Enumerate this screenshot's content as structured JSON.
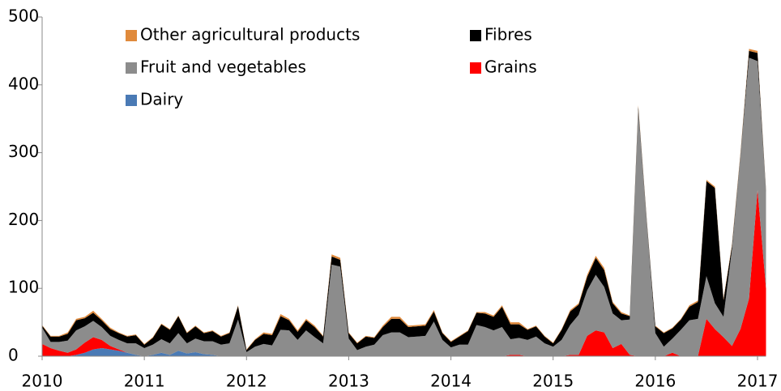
{
  "chart_data": {
    "type": "stacked_area",
    "x": [
      2010,
      2010.083,
      2010.167,
      2010.25,
      2010.333,
      2010.417,
      2010.5,
      2010.583,
      2010.667,
      2010.75,
      2010.833,
      2010.917,
      2011,
      2011.083,
      2011.167,
      2011.25,
      2011.333,
      2011.417,
      2011.5,
      2011.583,
      2011.667,
      2011.75,
      2011.833,
      2011.917,
      2012,
      2012.083,
      2012.167,
      2012.25,
      2012.333,
      2012.417,
      2012.5,
      2012.583,
      2012.667,
      2012.75,
      2012.833,
      2012.917,
      2013,
      2013.083,
      2013.167,
      2013.25,
      2013.333,
      2013.417,
      2013.5,
      2013.583,
      2013.667,
      2013.75,
      2013.833,
      2013.917,
      2014,
      2014.083,
      2014.167,
      2014.25,
      2014.333,
      2014.417,
      2014.5,
      2014.583,
      2014.667,
      2014.75,
      2014.833,
      2014.917,
      2015,
      2015.083,
      2015.167,
      2015.25,
      2015.333,
      2015.417,
      2015.5,
      2015.583,
      2015.667,
      2015.75,
      2015.833,
      2015.917,
      2016,
      2016.083,
      2016.167,
      2016.25,
      2016.333,
      2016.417,
      2016.5,
      2016.583,
      2016.667,
      2016.75,
      2016.833,
      2016.917,
      2017,
      2017.083
    ],
    "series": [
      {
        "name": "Dairy",
        "color": "#4a7ab5",
        "values": [
          0,
          0,
          0,
          0,
          2,
          5,
          10,
          12,
          10,
          8,
          5,
          2,
          0,
          2,
          5,
          2,
          8,
          4,
          6,
          3,
          2,
          0,
          0,
          0,
          0,
          0,
          0,
          0,
          0,
          0,
          0,
          0,
          0,
          0,
          0,
          0,
          0,
          0,
          0,
          0,
          0,
          0,
          0,
          0,
          0,
          0,
          0,
          0,
          0,
          0,
          0,
          0,
          0,
          0,
          0,
          0,
          0,
          0,
          0,
          0,
          0,
          0,
          0,
          0,
          0,
          0,
          0,
          0,
          0,
          0,
          0,
          0,
          0,
          0,
          0,
          0,
          0,
          0,
          0,
          0,
          0,
          0,
          0,
          0,
          0,
          0
        ]
      },
      {
        "name": "Grains",
        "color": "#ff0000",
        "values": [
          18,
          12,
          8,
          5,
          8,
          15,
          18,
          12,
          5,
          2,
          0,
          0,
          0,
          0,
          0,
          0,
          0,
          0,
          0,
          0,
          0,
          0,
          0,
          0,
          0,
          0,
          0,
          0,
          0,
          0,
          0,
          0,
          0,
          0,
          0,
          0,
          0,
          0,
          0,
          0,
          0,
          0,
          0,
          0,
          0,
          0,
          0,
          0,
          0,
          0,
          0,
          0,
          0,
          0,
          0,
          2,
          2,
          0,
          0,
          0,
          0,
          0,
          2,
          2,
          30,
          38,
          35,
          12,
          18,
          2,
          0,
          0,
          0,
          0,
          5,
          0,
          0,
          0,
          55,
          40,
          28,
          15,
          40,
          85,
          245,
          100
        ]
      },
      {
        "name": "Fruit and vegetables",
        "color": "#8c8c8c",
        "values": [
          24,
          9,
          13,
          18,
          28,
          24,
          24,
          19,
          15,
          14,
          14,
          17,
          12,
          15,
          20,
          17,
          26,
          15,
          20,
          19,
          20,
          17,
          19,
          54,
          6,
          14,
          18,
          16,
          39,
          38,
          24,
          38,
          28,
          19,
          135,
          132,
          26,
          9,
          14,
          17,
          31,
          35,
          35,
          28,
          29,
          30,
          51,
          24,
          13,
          17,
          17,
          46,
          43,
          38,
          43,
          23,
          25,
          24,
          29,
          19,
          14,
          24,
          44,
          59,
          67,
          82,
          67,
          51,
          35,
          52,
          363,
          196,
          34,
          14,
          21,
          39,
          53,
          55,
          63,
          38,
          30,
          143,
          256,
          355,
          190,
          142
        ]
      },
      {
        "name": "Fibres",
        "color": "#000000",
        "values": [
          3,
          8,
          8,
          10,
          15,
          12,
          12,
          10,
          10,
          10,
          10,
          12,
          5,
          10,
          22,
          20,
          25,
          15,
          18,
          12,
          15,
          12,
          15,
          20,
          3,
          10,
          15,
          15,
          20,
          15,
          12,
          15,
          15,
          10,
          12,
          10,
          8,
          10,
          15,
          10,
          12,
          20,
          20,
          15,
          15,
          15,
          15,
          10,
          8,
          12,
          20,
          18,
          20,
          20,
          30,
          22,
          20,
          15,
          15,
          10,
          5,
          15,
          20,
          15,
          20,
          25,
          25,
          15,
          10,
          5,
          5,
          3,
          10,
          20,
          15,
          15,
          20,
          25,
          140,
          170,
          25,
          5,
          2,
          10,
          12,
          2
        ]
      },
      {
        "name": "Other agricultural products",
        "color": "#e08a3c",
        "values": [
          1,
          1,
          1,
          2,
          2,
          2,
          3,
          2,
          2,
          1,
          1,
          1,
          1,
          1,
          1,
          1,
          1,
          1,
          1,
          1,
          1,
          1,
          1,
          1,
          1,
          1,
          2,
          2,
          3,
          2,
          2,
          2,
          2,
          1,
          3,
          3,
          1,
          1,
          1,
          1,
          2,
          3,
          3,
          2,
          2,
          2,
          2,
          1,
          1,
          1,
          1,
          1,
          2,
          2,
          2,
          3,
          3,
          1,
          1,
          1,
          1,
          1,
          2,
          2,
          3,
          3,
          3,
          2,
          2,
          1,
          2,
          1,
          1,
          1,
          1,
          1,
          2,
          2,
          2,
          2,
          2,
          2,
          2,
          3,
          3,
          1
        ]
      }
    ],
    "xlim": [
      2010,
      2017.083
    ],
    "xticks": [
      2010,
      2011,
      2012,
      2013,
      2014,
      2015,
      2016,
      2017
    ],
    "ylim": [
      0,
      500
    ],
    "yticks": [
      0,
      100,
      200,
      300,
      400,
      500
    ],
    "grid": false,
    "legend": "upper left"
  }
}
